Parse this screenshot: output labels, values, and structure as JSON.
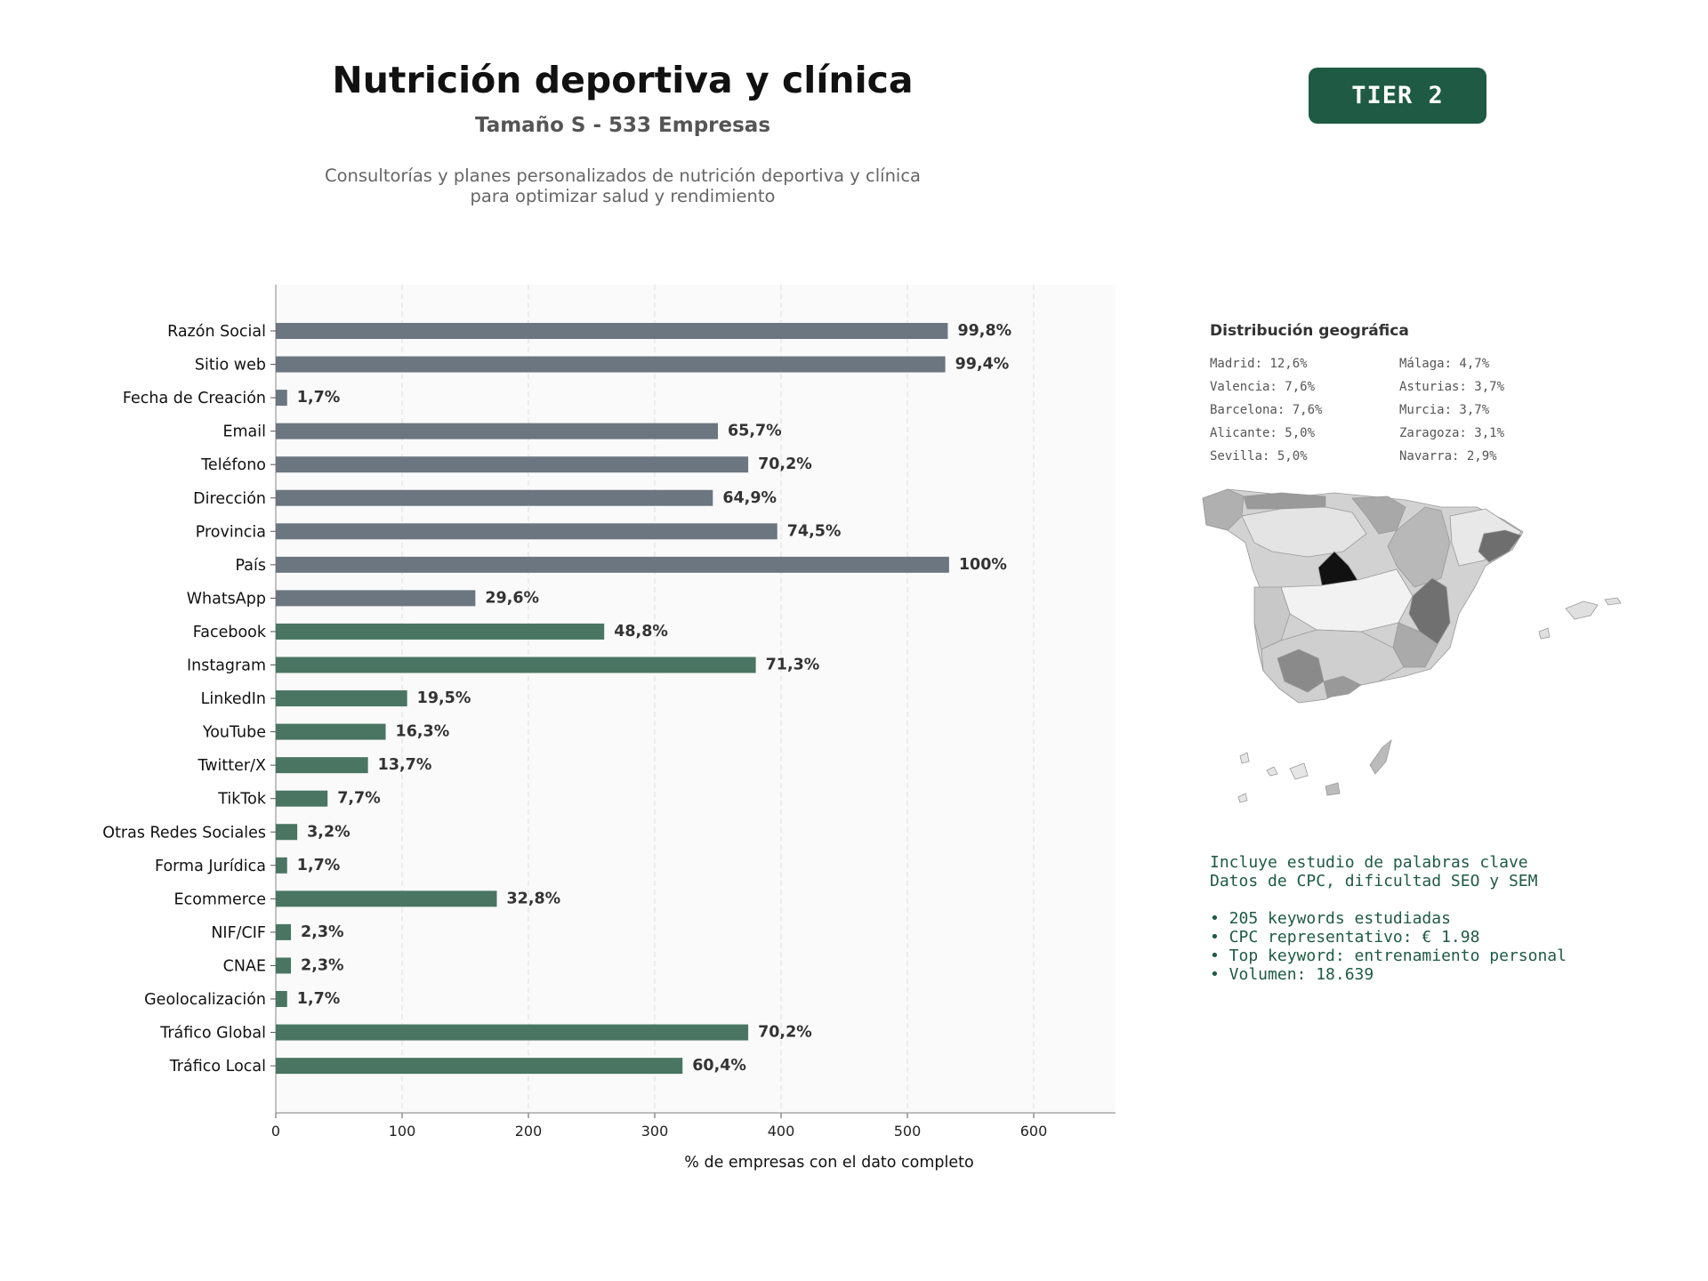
{
  "header": {
    "title": "Nutrición deportiva y clínica",
    "subtitle": "Tamaño S - 533 Empresas",
    "description_line1": "Consultorías y planes personalizados de nutrición deportiva y clínica",
    "description_line2": "para optimizar salud y rendimiento",
    "tier_badge": "TIER 2"
  },
  "colors": {
    "gray_bar": "#6c7680",
    "green_bar": "#497562",
    "tier_bg": "#1e5a44",
    "keyword_text": "#1e5a44",
    "plot_bg": "#fafafa"
  },
  "chart_data": {
    "type": "bar",
    "orientation": "horizontal",
    "title": "",
    "xlabel": "% de empresas con el dato completo",
    "ylabel": "",
    "xlim": [
      0,
      666
    ],
    "xticks": [
      0,
      100,
      200,
      300,
      400,
      500,
      600
    ],
    "grid": "vertical dashed",
    "categories": [
      "Razón Social",
      "Sitio web",
      "Fecha de Creación",
      "Email",
      "Teléfono",
      "Dirección",
      "Provincia",
      "País",
      "WhatsApp",
      "Facebook",
      "Instagram",
      "LinkedIn",
      "YouTube",
      "Twitter/X",
      "TikTok",
      "Otras Redes Sociales",
      "Forma Jurídica",
      "Ecommerce",
      "NIF/CIF",
      "CNAE",
      "Geolocalización",
      "Tráfico Global",
      "Tráfico Local"
    ],
    "values": [
      532,
      530,
      9,
      350,
      374,
      346,
      397,
      533,
      158,
      260,
      380,
      104,
      87,
      73,
      41,
      17,
      9,
      175,
      12,
      12,
      9,
      374,
      322
    ],
    "labels": [
      "99,8%",
      "99,4%",
      "1,7%",
      "65,7%",
      "70,2%",
      "64,9%",
      "74,5%",
      "100%",
      "29,6%",
      "48,8%",
      "71,3%",
      "19,5%",
      "16,3%",
      "13,7%",
      "7,7%",
      "3,2%",
      "1,7%",
      "32,8%",
      "2,3%",
      "2,3%",
      "1,7%",
      "70,2%",
      "60,4%"
    ],
    "bar_colors": [
      "gray",
      "gray",
      "gray",
      "gray",
      "gray",
      "gray",
      "gray",
      "gray",
      "gray",
      "green",
      "green",
      "green",
      "green",
      "green",
      "green",
      "green",
      "green",
      "green",
      "green",
      "green",
      "green",
      "green",
      "green"
    ]
  },
  "geo": {
    "title": "Distribución geográfica",
    "items": [
      "Madrid: 12,6%",
      "Málaga: 4,7%",
      "Valencia: 7,6%",
      "Asturias: 3,7%",
      "Barcelona: 7,6%",
      "Murcia: 3,7%",
      "Alicante: 5,0%",
      "Zaragoza: 3,1%",
      "Sevilla: 5,0%",
      "Navarra: 2,9%"
    ]
  },
  "keywords": {
    "line1": "Incluye estudio de palabras clave",
    "line2": "Datos de CPC, dificultad SEO y SEM",
    "bullets": [
      "• 205 keywords estudiadas",
      "• CPC representativo: € 1.98",
      "• Top keyword: entrenamiento personal",
      "• Volumen: 18.639"
    ]
  }
}
